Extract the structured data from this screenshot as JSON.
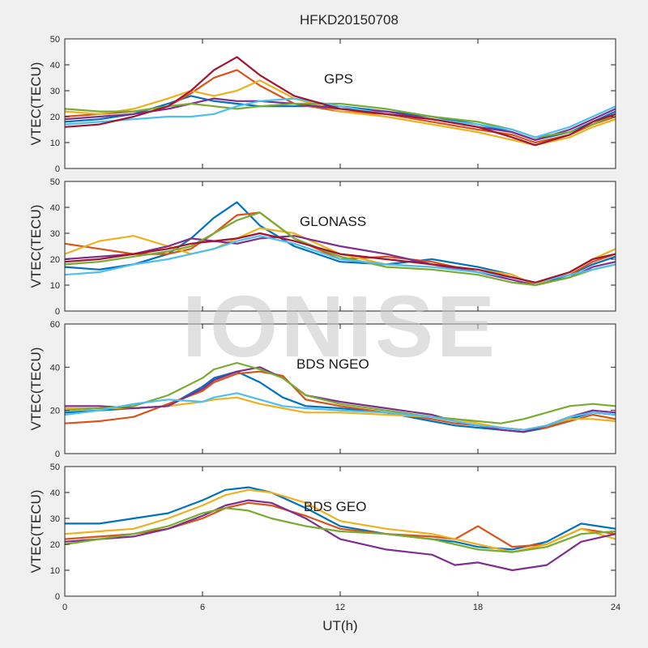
{
  "figure_title": "HFKD20150708",
  "watermark": "IONISE",
  "colors": [
    "#0072BD",
    "#D95319",
    "#EDB120",
    "#7E2F8E",
    "#77AC30",
    "#4DBEEE",
    "#A2142F"
  ],
  "chart_data": [
    {
      "type": "line",
      "panel_label": "GPS",
      "xlabel": "",
      "ylabel": "VTEC(TECU)",
      "xlim": [
        0,
        24
      ],
      "ylim": [
        0,
        50
      ],
      "xticks": [
        0,
        6,
        12,
        18,
        24
      ],
      "yticks": [
        0,
        10,
        20,
        30,
        40,
        50
      ],
      "series": [
        {
          "x": [
            0,
            1.5,
            3,
            4.5,
            5.5,
            6.5,
            7.5,
            8.5,
            10,
            12,
            14,
            16,
            18,
            19.5,
            20.5,
            22,
            23,
            24
          ],
          "y": [
            18,
            19,
            21,
            25,
            28,
            26,
            25,
            24,
            24,
            24,
            22,
            20,
            17,
            14,
            11,
            14,
            18,
            22
          ]
        },
        {
          "x": [
            0,
            1.5,
            3,
            4.5,
            5.5,
            6.5,
            7.5,
            8.5,
            10,
            12,
            14,
            16,
            18,
            19.5,
            20.5,
            22,
            23,
            24
          ],
          "y": [
            20,
            21,
            22,
            24,
            29,
            35,
            38,
            32,
            25,
            22,
            21,
            18,
            15,
            13,
            10,
            13,
            17,
            20
          ]
        },
        {
          "x": [
            0,
            1.5,
            3,
            4.5,
            5.5,
            6.5,
            7.5,
            8.5,
            10,
            12,
            14,
            16,
            18,
            19.5,
            20.5,
            22,
            23,
            24
          ],
          "y": [
            22,
            21,
            23,
            27,
            30,
            28,
            30,
            34,
            27,
            22,
            20,
            17,
            14,
            11,
            9,
            12,
            16,
            19
          ]
        },
        {
          "x": [
            0,
            1.5,
            3,
            4.5,
            5.5,
            6.5,
            7.5,
            8.5,
            10,
            12,
            14,
            16,
            18,
            19.5,
            20.5,
            22,
            23,
            24
          ],
          "y": [
            19,
            20,
            21,
            23,
            25,
            27,
            26,
            26,
            25,
            23,
            22,
            19,
            16,
            14,
            11,
            15,
            19,
            23
          ]
        },
        {
          "x": [
            0,
            1.5,
            3,
            4.5,
            5.5,
            6.5,
            7.5,
            8.5,
            10,
            12,
            14,
            16,
            18,
            19.5,
            20.5,
            22,
            23,
            24
          ],
          "y": [
            23,
            22,
            22,
            24,
            25,
            24,
            23,
            24,
            25,
            25,
            23,
            20,
            18,
            15,
            12,
            14,
            17,
            21
          ]
        },
        {
          "x": [
            0,
            1.5,
            3,
            4.5,
            5.5,
            6.5,
            7.5,
            8.5,
            10,
            12,
            14,
            16,
            18,
            19.5,
            20.5,
            22,
            23,
            24
          ],
          "y": [
            17,
            18,
            19,
            20,
            20,
            21,
            24,
            26,
            27,
            24,
            21,
            19,
            17,
            15,
            12,
            16,
            20,
            24
          ]
        },
        {
          "x": [
            0,
            1.5,
            3,
            4.5,
            5.5,
            6.5,
            7.5,
            8.5,
            10,
            12,
            14,
            16,
            18,
            19.5,
            20.5,
            22,
            23,
            24
          ],
          "y": [
            16,
            17,
            20,
            24,
            30,
            38,
            43,
            36,
            28,
            23,
            21,
            19,
            16,
            12,
            9,
            13,
            18,
            21
          ]
        }
      ]
    },
    {
      "type": "line",
      "panel_label": "GLONASS",
      "xlabel": "",
      "ylabel": "VTEC(TECU)",
      "xlim": [
        0,
        24
      ],
      "ylim": [
        0,
        50
      ],
      "xticks": [
        0,
        6,
        12,
        18,
        24
      ],
      "yticks": [
        0,
        10,
        20,
        30,
        40,
        50
      ],
      "series": [
        {
          "x": [
            0,
            1.5,
            3,
            4.5,
            5.5,
            6.5,
            7.5,
            8.5,
            10,
            12,
            14,
            16,
            18,
            19.5,
            20.5,
            22,
            23,
            24
          ],
          "y": [
            17,
            16,
            18,
            22,
            28,
            36,
            42,
            33,
            25,
            19,
            18,
            20,
            17,
            14,
            10,
            14,
            18,
            21
          ]
        },
        {
          "x": [
            0,
            1.5,
            3,
            4.5,
            5.5,
            6.5,
            7.5,
            8.5,
            10,
            12,
            14,
            16,
            18,
            19.5,
            20.5,
            22,
            23,
            24
          ],
          "y": [
            26,
            24,
            22,
            22,
            24,
            30,
            37,
            38,
            28,
            20,
            21,
            19,
            15,
            13,
            11,
            14,
            19,
            22
          ]
        },
        {
          "x": [
            0,
            1.5,
            3,
            4.5,
            5.5,
            6.5,
            7.5,
            8.5,
            10,
            12,
            14,
            16,
            18,
            19.5,
            20.5,
            22,
            23,
            24
          ],
          "y": [
            22,
            27,
            29,
            25,
            22,
            24,
            28,
            32,
            30,
            22,
            18,
            17,
            16,
            14,
            10,
            15,
            20,
            24
          ]
        },
        {
          "x": [
            0,
            1.5,
            3,
            4.5,
            5.5,
            6.5,
            7.5,
            8.5,
            10,
            12,
            14,
            16,
            18,
            19.5,
            20.5,
            22,
            23,
            24
          ],
          "y": [
            20,
            21,
            22,
            25,
            28,
            27,
            26,
            28,
            29,
            25,
            22,
            18,
            15,
            12,
            10,
            13,
            17,
            19
          ]
        },
        {
          "x": [
            0,
            1.5,
            3,
            4.5,
            5.5,
            6.5,
            7.5,
            8.5,
            10,
            12,
            14,
            16,
            18,
            19.5,
            20.5,
            22,
            23,
            24
          ],
          "y": [
            18,
            19,
            21,
            23,
            25,
            30,
            35,
            38,
            28,
            21,
            17,
            16,
            14,
            11,
            10,
            13,
            16,
            18
          ]
        },
        {
          "x": [
            0,
            1.5,
            3,
            4.5,
            5.5,
            6.5,
            7.5,
            8.5,
            10,
            12,
            14,
            16,
            18,
            19.5,
            20.5,
            22,
            23,
            24
          ],
          "y": [
            14,
            15,
            18,
            20,
            22,
            24,
            27,
            29,
            26,
            20,
            18,
            17,
            15,
            13,
            11,
            14,
            16,
            18
          ]
        },
        {
          "x": [
            0,
            1.5,
            3,
            4.5,
            5.5,
            6.5,
            7.5,
            8.5,
            10,
            12,
            14,
            16,
            18,
            19.5,
            20.5,
            22,
            23,
            24
          ],
          "y": [
            19,
            20,
            22,
            24,
            26,
            27,
            28,
            30,
            27,
            22,
            20,
            18,
            16,
            13,
            11,
            15,
            20,
            22
          ]
        }
      ]
    },
    {
      "type": "line",
      "panel_label": "BDS NGEO",
      "xlabel": "",
      "ylabel": "VTEC(TECU)",
      "xlim": [
        0,
        24
      ],
      "ylim": [
        0,
        60
      ],
      "xticks": [
        0,
        6,
        12,
        18,
        24
      ],
      "yticks": [
        0,
        20,
        40,
        60
      ],
      "series": [
        {
          "x": [
            0,
            1.5,
            3,
            4.5,
            6,
            6.5,
            7.5,
            8.5,
            9.5,
            10.5,
            12,
            14,
            16,
            17,
            18,
            19,
            20,
            21,
            22,
            23,
            24
          ],
          "y": [
            19,
            20,
            21,
            22,
            31,
            35,
            38,
            33,
            26,
            22,
            21,
            19,
            15,
            13,
            12,
            11,
            10,
            12,
            16,
            19,
            18
          ]
        },
        {
          "x": [
            0,
            1.5,
            3,
            4.5,
            6,
            6.5,
            7.5,
            8.5,
            9.5,
            10.5,
            12,
            14,
            16,
            17,
            18,
            19,
            20,
            21,
            22,
            23,
            24
          ],
          "y": [
            14,
            15,
            17,
            23,
            29,
            33,
            37,
            38,
            36,
            25,
            22,
            19,
            16,
            14,
            13,
            12,
            11,
            12,
            15,
            18,
            16
          ]
        },
        {
          "x": [
            0,
            1.5,
            3,
            4.5,
            6,
            6.5,
            7.5,
            8.5,
            9.5,
            10.5,
            12,
            14,
            16,
            17,
            18,
            19,
            20,
            21,
            22,
            23,
            24
          ],
          "y": [
            21,
            21,
            21,
            22,
            24,
            25,
            26,
            23,
            21,
            19,
            19,
            18,
            17,
            16,
            14,
            12,
            11,
            13,
            16,
            16,
            15
          ]
        },
        {
          "x": [
            0,
            1.5,
            3,
            4.5,
            6,
            6.5,
            7.5,
            8.5,
            9.5,
            10.5,
            12,
            14,
            16,
            17,
            18,
            19,
            20,
            21,
            22,
            23,
            24
          ],
          "y": [
            22,
            22,
            21,
            22,
            30,
            34,
            38,
            40,
            35,
            27,
            24,
            21,
            18,
            15,
            13,
            11,
            10,
            13,
            17,
            20,
            19
          ]
        },
        {
          "x": [
            0,
            1.5,
            3,
            4.5,
            6,
            6.5,
            7.5,
            8.5,
            9.5,
            10.5,
            12,
            14,
            16,
            17,
            18,
            19,
            20,
            21,
            22,
            23,
            24
          ],
          "y": [
            20,
            21,
            22,
            27,
            35,
            39,
            42,
            39,
            35,
            27,
            23,
            20,
            17,
            16,
            15,
            14,
            16,
            19,
            22,
            23,
            22
          ]
        },
        {
          "x": [
            0,
            1.5,
            3,
            4.5,
            6,
            6.5,
            7.5,
            8.5,
            9.5,
            10.5,
            12,
            14,
            16,
            17,
            18,
            19,
            20,
            21,
            22,
            23,
            24
          ],
          "y": [
            18,
            20,
            23,
            25,
            24,
            26,
            28,
            25,
            22,
            21,
            20,
            19,
            17,
            15,
            13,
            12,
            11,
            13,
            17,
            19,
            18
          ]
        }
      ]
    },
    {
      "type": "line",
      "panel_label": "BDS GEO",
      "xlabel": "UT(h)",
      "ylabel": "VTEC(TECU)",
      "xlim": [
        0,
        24
      ],
      "ylim": [
        0,
        50
      ],
      "xticks": [
        0,
        6,
        12,
        18,
        24
      ],
      "yticks": [
        0,
        10,
        20,
        30,
        40,
        50
      ],
      "series": [
        {
          "x": [
            0,
            1.5,
            3,
            4.5,
            6,
            7,
            8,
            9,
            10.5,
            12,
            14,
            16,
            17,
            18,
            19.5,
            21,
            22.5,
            24
          ],
          "y": [
            28,
            28,
            30,
            32,
            37,
            41,
            42,
            40,
            34,
            27,
            24,
            22,
            21,
            19,
            18,
            21,
            28,
            26
          ]
        },
        {
          "x": [
            0,
            1.5,
            3,
            4.5,
            6,
            7,
            8,
            9,
            10.5,
            12,
            14,
            16,
            17,
            18,
            19.5,
            21,
            22.5,
            24
          ],
          "y": [
            22,
            23,
            24,
            26,
            30,
            34,
            36,
            35,
            31,
            26,
            24,
            23,
            22,
            27,
            19,
            20,
            26,
            24
          ]
        },
        {
          "x": [
            0,
            1.5,
            3,
            4.5,
            6,
            7,
            8,
            9,
            10.5,
            12,
            14,
            16,
            17,
            18,
            19.5,
            21,
            22.5,
            24
          ],
          "y": [
            24,
            25,
            26,
            30,
            35,
            39,
            41,
            40,
            36,
            29,
            26,
            24,
            22,
            20,
            17,
            20,
            26,
            22
          ]
        },
        {
          "x": [
            0,
            1.5,
            3,
            4.5,
            6,
            7,
            8,
            9,
            10.5,
            12,
            14,
            16,
            17,
            18,
            19.5,
            21,
            22.5,
            24
          ],
          "y": [
            21,
            22,
            23,
            26,
            31,
            35,
            37,
            36,
            30,
            22,
            18,
            16,
            12,
            13,
            10,
            12,
            21,
            24
          ]
        },
        {
          "x": [
            0,
            1.5,
            3,
            4.5,
            6,
            7,
            8,
            9,
            10.5,
            12,
            14,
            16,
            17,
            18,
            19.5,
            21,
            22.5,
            24
          ],
          "y": [
            20,
            22,
            24,
            27,
            32,
            34,
            33,
            30,
            27,
            25,
            24,
            22,
            20,
            18,
            17,
            19,
            24,
            25
          ]
        }
      ]
    }
  ]
}
